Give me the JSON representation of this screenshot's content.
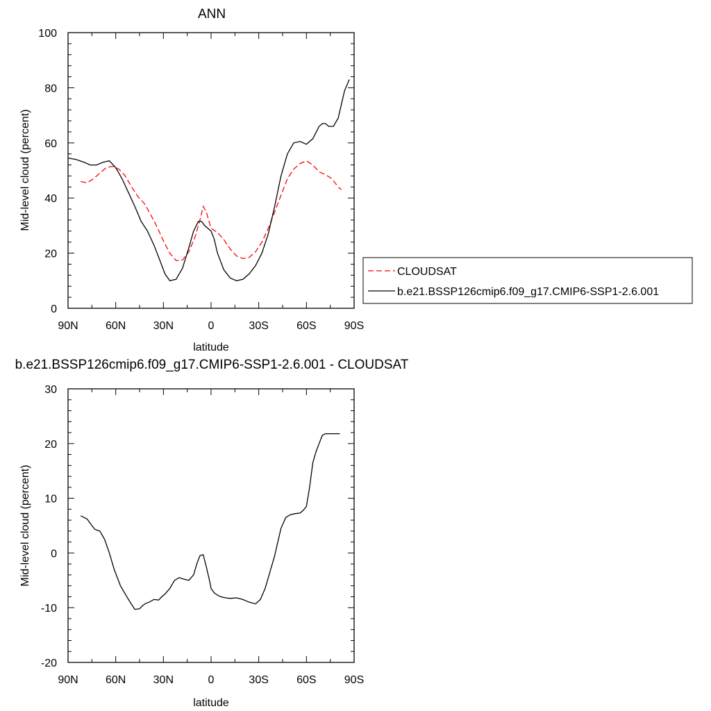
{
  "chart_data": [
    {
      "type": "line",
      "title": "ANN",
      "xlabel": "latitude",
      "ylabel": "Mid-level cloud (percent)",
      "xlim": [
        90,
        -90
      ],
      "ylim": [
        0,
        100
      ],
      "x_ticks": [
        90,
        60,
        30,
        0,
        -30,
        -60,
        -90
      ],
      "x_tick_labels": [
        "90N",
        "60N",
        "30N",
        "0",
        "30S",
        "60S",
        "90S"
      ],
      "y_ticks": [
        0,
        20,
        40,
        60,
        80,
        100
      ],
      "y_tick_labels": [
        "0",
        "20",
        "40",
        "60",
        "80",
        "100"
      ],
      "legend_position": "right",
      "series": [
        {
          "name": "CLOUDSAT",
          "color": "#ff0000",
          "dash": "dashed",
          "x": [
            82,
            78,
            74,
            70,
            66,
            62,
            58,
            54,
            50,
            46,
            42,
            38,
            34,
            30,
            26,
            22,
            18,
            14,
            10,
            7,
            5,
            3,
            0,
            -4,
            -8,
            -12,
            -16,
            -20,
            -24,
            -28,
            -32,
            -36,
            -40,
            -44,
            -48,
            -52,
            -56,
            -60,
            -64,
            -68,
            -72,
            -76,
            -80,
            -82
          ],
          "y": [
            46,
            45.5,
            47,
            49,
            51,
            51.5,
            50.5,
            48,
            44,
            40.5,
            38,
            34,
            29.5,
            24.5,
            20,
            17.3,
            17.5,
            20.5,
            26,
            32,
            37,
            35,
            29,
            27.5,
            25,
            21.5,
            19,
            18,
            18.5,
            20.5,
            24,
            29,
            35,
            41,
            47,
            50.5,
            52.5,
            53.5,
            52,
            49.5,
            48.5,
            47,
            44,
            43
          ]
        },
        {
          "name": "b.e21.BSSP126cmip6.f09_g17.CMIP6-SSP1-2.6.001",
          "color": "#000000",
          "dash": "solid",
          "x": [
            90,
            85,
            80,
            76,
            72,
            68,
            64,
            60,
            56,
            52,
            48,
            44,
            40,
            36,
            32,
            29,
            26,
            22,
            18,
            14,
            11,
            8,
            6,
            4,
            2,
            0,
            -2,
            -4,
            -8,
            -12,
            -16,
            -20,
            -24,
            -28,
            -32,
            -36,
            -40,
            -44,
            -48,
            -52,
            -56,
            -60,
            -64,
            -68,
            -70,
            -72,
            -74,
            -77,
            -80,
            -82,
            -84,
            -87
          ],
          "y": [
            54.5,
            54,
            53,
            52,
            52,
            53,
            53.5,
            51,
            47,
            42,
            37,
            31.5,
            28,
            23,
            17,
            12.5,
            10,
            10.5,
            14.5,
            22,
            28,
            31.5,
            31.5,
            30,
            29,
            28,
            25,
            20,
            14,
            11,
            10,
            10.5,
            12.5,
            15.5,
            20,
            27,
            37,
            48,
            56,
            60,
            60.5,
            59.5,
            61.5,
            66,
            67,
            67,
            66,
            66,
            69,
            74,
            79,
            83
          ]
        }
      ]
    },
    {
      "type": "line",
      "title": "b.e21.BSSP126cmip6.f09_g17.CMIP6-SSP1-2.6.001 - CLOUDSAT",
      "xlabel": "latitude",
      "ylabel": "Mid-level cloud (percent)",
      "xlim": [
        90,
        -90
      ],
      "ylim": [
        -20,
        30
      ],
      "x_ticks": [
        90,
        60,
        30,
        0,
        -30,
        -60,
        -90
      ],
      "x_tick_labels": [
        "90N",
        "60N",
        "30N",
        "0",
        "30S",
        "60S",
        "90S"
      ],
      "y_ticks": [
        -20,
        -10,
        0,
        10,
        20,
        30
      ],
      "y_tick_labels": [
        "-20",
        "-10",
        "0",
        "10",
        "20",
        "30"
      ],
      "series": [
        {
          "color": "#000000",
          "dash": "solid",
          "x": [
            82,
            78,
            75,
            73,
            70,
            67,
            64,
            61,
            57,
            52,
            48,
            45,
            43,
            41,
            39,
            36,
            33,
            31,
            29,
            26,
            23,
            20,
            17,
            14,
            11,
            9,
            7,
            5,
            3,
            1,
            0,
            -2,
            -4,
            -6,
            -9,
            -12,
            -16,
            -20,
            -24,
            -28,
            -31,
            -34,
            -37,
            -40,
            -42,
            -44,
            -47,
            -50,
            -53,
            -56,
            -58,
            -60,
            -62,
            -64,
            -66,
            -68,
            -70,
            -72,
            -74,
            -76,
            -78,
            -81
          ],
          "y": [
            6.8,
            6.2,
            5,
            4.3,
            4,
            2.5,
            0,
            -3,
            -6,
            -8.5,
            -10.3,
            -10.2,
            -9.6,
            -9.2,
            -9,
            -8.5,
            -8.6,
            -8,
            -7.5,
            -6.5,
            -5,
            -4.5,
            -4.8,
            -5,
            -4,
            -2,
            -0.5,
            -0.3,
            -2.5,
            -5,
            -6.5,
            -7.3,
            -7.7,
            -8,
            -8.2,
            -8.3,
            -8.2,
            -8.5,
            -9,
            -9.3,
            -8.5,
            -6.5,
            -3.5,
            -0.5,
            2,
            4.5,
            6.5,
            7,
            7.2,
            7.3,
            7.8,
            8.5,
            12,
            16.5,
            18.5,
            20,
            21.5,
            21.8,
            21.8,
            21.8,
            21.8,
            21.8
          ]
        }
      ]
    }
  ]
}
